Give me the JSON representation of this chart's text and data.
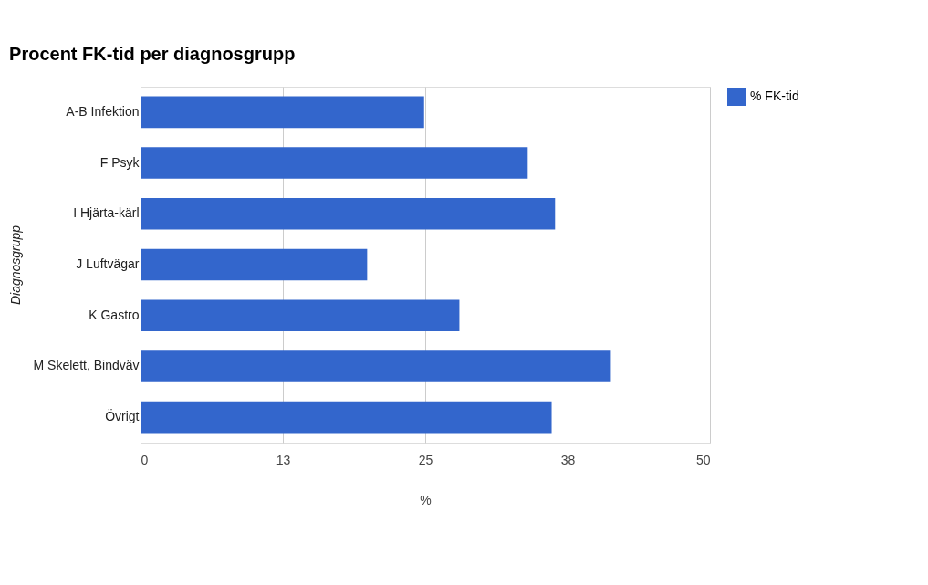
{
  "chart_data": {
    "type": "bar",
    "orientation": "horizontal",
    "title": "Procent FK-tid per diagnosgrupp",
    "xlabel": "%",
    "ylabel": "Diagnosgrupp",
    "categories": [
      "A-B Infektion",
      "F Psyk",
      "I Hjärta-kärl",
      "J Luftvägar",
      "K Gastro",
      "M Skelett, Bindväv",
      "Övrigt"
    ],
    "series": [
      {
        "name": "% FK-tid",
        "color": "#3366cc",
        "values": [
          24.9,
          34.0,
          36.4,
          19.9,
          28.0,
          41.3,
          36.1
        ]
      }
    ],
    "xlim": [
      0,
      50
    ],
    "xticks": [
      0,
      {
        "value": 12.5,
        "label": "13"
      },
      25,
      {
        "value": 37.5,
        "label": "38"
      },
      50
    ],
    "grid": "x",
    "legend": "right"
  }
}
